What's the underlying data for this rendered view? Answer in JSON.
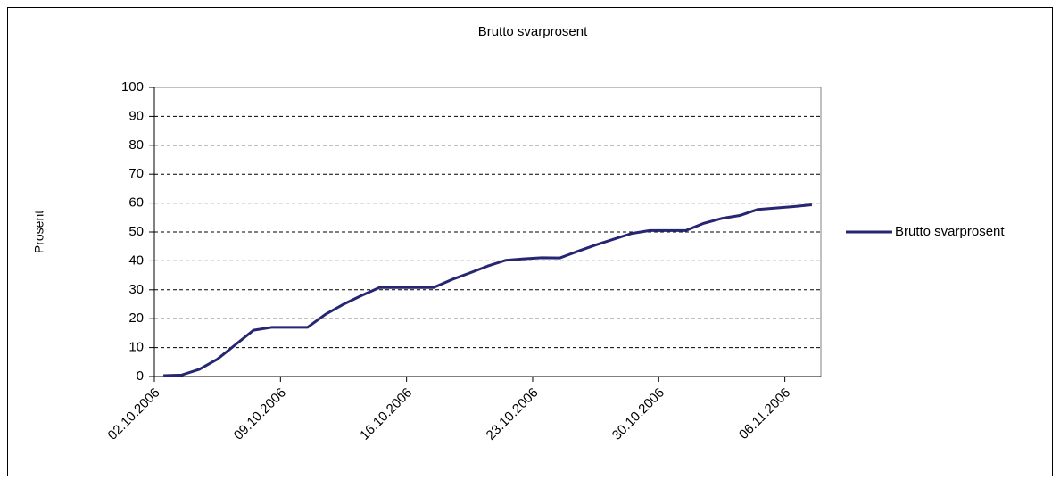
{
  "chart_data": {
    "type": "line",
    "title": "Brutto svarprosent",
    "y_label": "Prosent",
    "categories": [
      "02.10.2006",
      null,
      null,
      null,
      null,
      null,
      null,
      "09.10.2006",
      null,
      null,
      null,
      null,
      null,
      null,
      "16.10.2006",
      null,
      null,
      null,
      null,
      null,
      null,
      "23.10.2006",
      null,
      null,
      null,
      null,
      null,
      null,
      "30.10.2006",
      null,
      null,
      null,
      null,
      null,
      null,
      "06.11.2006",
      null
    ],
    "series": [
      {
        "name": "Brutto svarprosent",
        "color": "#262673",
        "values": [
          0.3,
          0.5,
          2.5,
          6,
          11,
          16,
          17,
          17,
          17,
          21.5,
          25,
          28,
          30.8,
          30.8,
          30.8,
          30.8,
          33.5,
          35.8,
          38.2,
          40.2,
          40.7,
          41.1,
          41,
          43.3,
          45.5,
          47.5,
          49.5,
          50.5,
          50.5,
          50.5,
          53,
          54.7,
          55.7,
          57.8,
          58.3,
          58.8,
          59.4
        ]
      }
    ],
    "ylim": [
      0,
      100
    ],
    "yticks": [
      0,
      10,
      20,
      30,
      40,
      50,
      60,
      70,
      80,
      90,
      100
    ],
    "grid": true,
    "legend": "right"
  }
}
